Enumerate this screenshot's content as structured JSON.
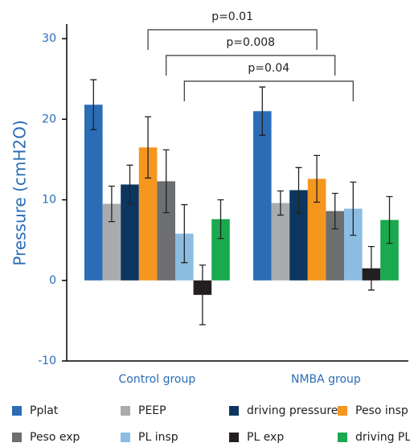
{
  "chart_data": {
    "type": "bar",
    "y_label": "Pressure (cmH2O)",
    "categories": [
      "Control group",
      "NMBA group"
    ],
    "ylim": [
      -10,
      32
    ],
    "yticks": [
      -10,
      0,
      10,
      20,
      30
    ],
    "series": [
      {
        "name": "Pplat",
        "color": "#2a6cb6",
        "values": [
          21.8,
          21.0
        ],
        "errors": [
          3.1,
          3.0
        ]
      },
      {
        "name": "PEEP",
        "color": "#a9acae",
        "values": [
          9.5,
          9.6
        ],
        "errors": [
          2.2,
          1.5
        ]
      },
      {
        "name": "driving pressure",
        "color": "#0c365f",
        "values": [
          11.9,
          11.2
        ],
        "errors": [
          2.4,
          2.8
        ]
      },
      {
        "name": "Peso insp",
        "color": "#f5961f",
        "values": [
          16.5,
          12.6
        ],
        "errors": [
          3.8,
          2.9
        ]
      },
      {
        "name": "Peso exp",
        "color": "#6d6e70",
        "values": [
          12.3,
          8.6
        ],
        "errors": [
          3.9,
          2.2
        ]
      },
      {
        "name": "PL insp",
        "color": "#8cbce1",
        "values": [
          5.8,
          8.9
        ],
        "errors": [
          3.6,
          3.3
        ]
      },
      {
        "name": "PL exp",
        "color": "#231f20",
        "values": [
          -1.8,
          1.5
        ],
        "errors": [
          3.7,
          2.7
        ]
      },
      {
        "name": "driving PL",
        "color": "#19a94f",
        "values": [
          7.6,
          7.5
        ],
        "errors": [
          2.4,
          2.9
        ]
      }
    ],
    "annotations": [
      "p=0.01",
      "p=0.008",
      "p=0.04"
    ]
  }
}
